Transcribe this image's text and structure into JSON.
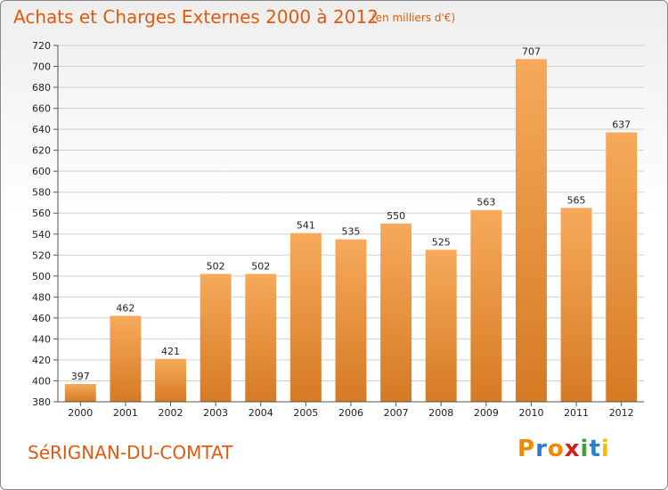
{
  "header": {
    "title": "Achats et Charges Externes 2000 à 2012",
    "subtitle": "(en milliers d'€)"
  },
  "footer": {
    "commune": "SéRIGNAN-DU-COMTAT",
    "brand": "Proxiti",
    "brand_colors": [
      "#f08a00",
      "#2a7fd0",
      "#f08a00",
      "#d02020",
      "#40a040",
      "#2a7fd0",
      "#f0c000"
    ]
  },
  "colors": {
    "bar_light": "#f6aa5a",
    "bar_dark": "#d67a24",
    "title": "#e05a10",
    "grid": "#cfcfcf"
  },
  "chart_data": {
    "type": "bar",
    "title": "Achats et Charges Externes 2000 à 2012",
    "subtitle": "(en milliers d'€)",
    "categories": [
      "2000",
      "2001",
      "2002",
      "2003",
      "2004",
      "2005",
      "2006",
      "2007",
      "2008",
      "2009",
      "2010",
      "2011",
      "2012"
    ],
    "values": [
      397,
      462,
      421,
      502,
      502,
      541,
      535,
      550,
      525,
      563,
      707,
      565,
      637
    ],
    "ylim": [
      380,
      720
    ],
    "yticks": [
      380,
      400,
      420,
      440,
      460,
      480,
      500,
      520,
      540,
      560,
      580,
      600,
      620,
      640,
      660,
      680,
      700,
      720
    ],
    "grid": true,
    "legend": "none"
  }
}
